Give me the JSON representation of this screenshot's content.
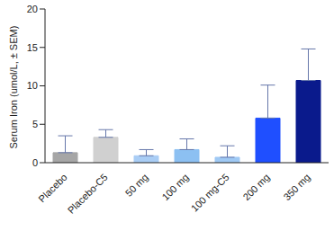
{
  "chart_data": {
    "type": "bar",
    "y_label": "Serum Iron (umol/L, ± SEM)",
    "categories": [
      "Placebo",
      "Placebo-C5",
      "50 mg",
      "100 mg",
      "100 mg-C5",
      "200 mg",
      "350 mg"
    ],
    "values": [
      1.3,
      3.3,
      0.9,
      1.7,
      0.7,
      5.8,
      10.7
    ],
    "errors": [
      2.2,
      1.0,
      0.8,
      1.4,
      1.5,
      4.3,
      4.1
    ],
    "colors": [
      "#a6a6a6",
      "#d0d0d0",
      "#a9cdf5",
      "#8cc0f2",
      "#9fc9f4",
      "#1f4fff",
      "#0a1a8c"
    ],
    "ylim": [
      0,
      20
    ],
    "yticks": [
      0,
      5,
      10,
      15,
      20
    ],
    "grid": false
  }
}
